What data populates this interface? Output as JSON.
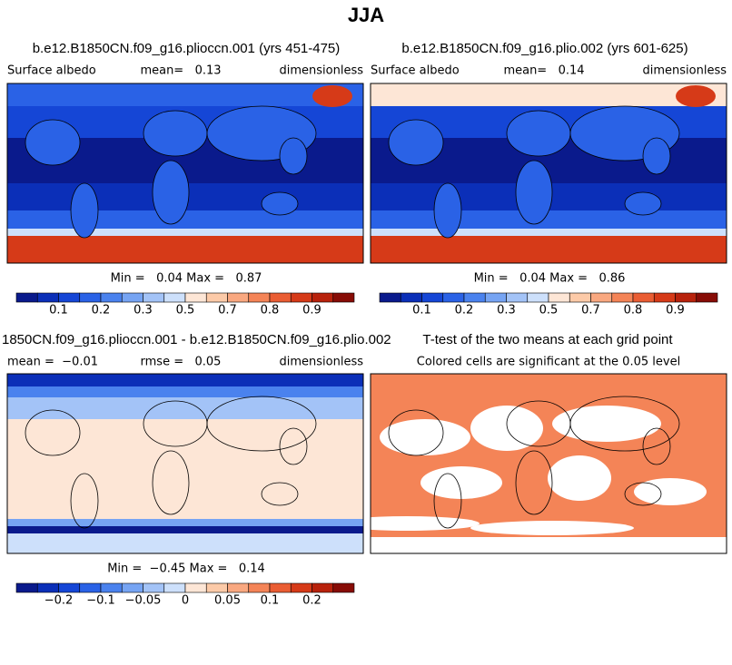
{
  "title": "JJA",
  "colormap": [
    "#0a1a8c",
    "#0b2fb8",
    "#1546d6",
    "#2a62e6",
    "#4a82ee",
    "#76a4f3",
    "#a3c3f7",
    "#cde0fb",
    "#fde6d6",
    "#fccaa8",
    "#f9a880",
    "#f48457",
    "#ea5d33",
    "#d63a18",
    "#b8220c",
    "#870c06"
  ],
  "panels": [
    {
      "title": "b.e12.B1850CN.f09_g16.plioccn.001 (yrs 451-475)",
      "left": "Surface albedo",
      "center": "mean=   0.13",
      "right": "dimensionless",
      "minmax": "Min =   0.04 Max =   0.87",
      "colorbar_labels": [
        "0.1",
        "0.2",
        "0.3",
        "0.5",
        "0.7",
        "0.8",
        "0.9"
      ]
    },
    {
      "title": "b.e12.B1850CN.f09_g16.plio.002 (yrs 601-625)",
      "left": "Surface albedo",
      "center": "mean=   0.14",
      "right": "dimensionless",
      "minmax": "Min =   0.04 Max =   0.86",
      "colorbar_labels": [
        "0.1",
        "0.2",
        "0.3",
        "0.5",
        "0.7",
        "0.8",
        "0.9"
      ]
    },
    {
      "title": "1850CN.f09_g16.plioccn.001 - b.e12.B1850CN.f09_g16.plio.002",
      "left": "mean =  −0.01",
      "center": "rmse =   0.05",
      "right": "dimensionless",
      "minmax": "Min =  −0.45 Max =   0.14",
      "colorbar_labels": [
        "−0.2",
        "−0.1",
        "−0.05",
        "0",
        "0.05",
        "0.1",
        "0.2"
      ]
    },
    {
      "title": "T-test of the two means at each grid point",
      "center": "Colored cells are significant at the 0.05 level"
    }
  ]
}
